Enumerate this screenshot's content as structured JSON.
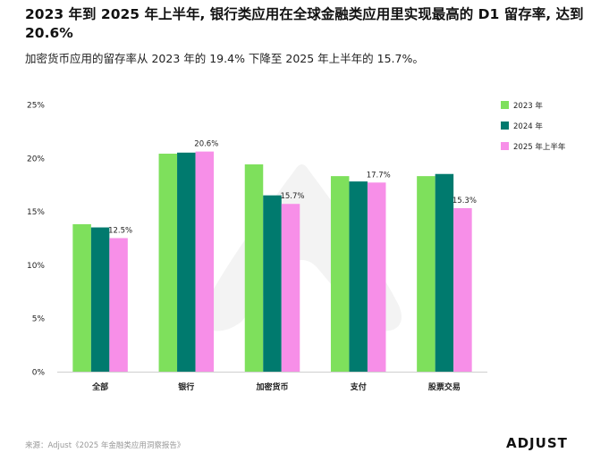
{
  "title": "2023 年到 2025 年上半年, 银行类应用在全球金融类应用里实现最高的 D1 留存率, 达到 20.6%",
  "subtitle": "加密货币应用的留存率从 2023 年的 19.4% 下降至 2025 年上半年的 15.7%。",
  "source": "来源：Adjust《2025 年金融类应用洞察报告》",
  "logo_text": "ADJUST",
  "colors": {
    "series_2023": "#7ee05c",
    "series_2024": "#007a6e",
    "series_2025h1": "#f78fe8",
    "watermark": "#f2f2f2"
  },
  "chart_data": {
    "type": "bar",
    "categories": [
      "全部",
      "银行",
      "加密货币",
      "支付",
      "股票交易"
    ],
    "series": [
      {
        "name": "2023 年",
        "values": [
          13.8,
          20.4,
          19.4,
          18.3,
          18.3
        ]
      },
      {
        "name": "2024 年",
        "values": [
          13.5,
          20.5,
          16.5,
          17.8,
          18.5
        ]
      },
      {
        "name": "2025 年上半年",
        "values": [
          12.5,
          20.6,
          15.7,
          17.7,
          15.3
        ]
      }
    ],
    "data_labels": [
      "12.5%",
      "20.6%",
      "15.7%",
      "17.7%",
      "15.3%"
    ],
    "y_ticks": [
      "0%",
      "5%",
      "10%",
      "15%",
      "20%",
      "25%"
    ],
    "ylim": [
      0,
      25
    ],
    "xlabel": "",
    "ylabel": "",
    "legend_position": "right"
  }
}
